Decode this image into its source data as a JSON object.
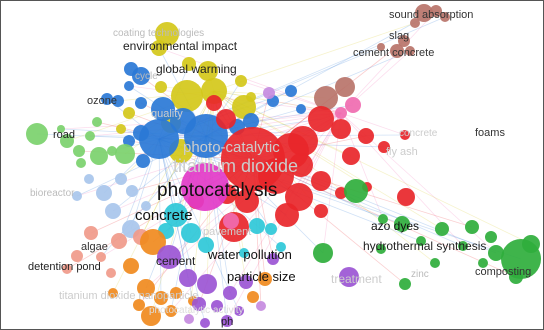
{
  "map": {
    "background": "#ffffff",
    "border_color": "#555555",
    "cluster_colors": {
      "red": "#e8262a",
      "blue": "#2a78d6",
      "yellow": "#d4c81a",
      "green": "#2fae3c",
      "light_green": "#7bd16c",
      "orange": "#f08a1e",
      "purple": "#9b55d4",
      "cyan": "#2ec8d8",
      "pink": "#f06bb0",
      "magenta": "#e23bc8",
      "light_blue": "#a8c6ec",
      "brown": "#b8746a",
      "salmon": "#f09a8a",
      "violet": "#c58be0"
    },
    "labels": [
      {
        "text": "sound absorption",
        "color": "#333333"
      },
      {
        "text": "slag",
        "color": "#333333"
      },
      {
        "text": "cement concrete",
        "color": "#333333"
      },
      {
        "text": "coating technologies",
        "color": "#bbbbbb"
      },
      {
        "text": "environmental impact",
        "color": "#222222"
      },
      {
        "text": "global warming",
        "color": "#222222"
      },
      {
        "text": "cycle",
        "color": "#bbbbbb"
      },
      {
        "text": "ozone",
        "color": "#333333"
      },
      {
        "text": "quality",
        "color": "#cccccc"
      },
      {
        "text": "road",
        "color": "#222222"
      },
      {
        "text": "concrete",
        "color": "#cccccc"
      },
      {
        "text": "fly ash",
        "color": "#cccccc"
      },
      {
        "text": "foams",
        "color": "#333333"
      },
      {
        "text": "photo-catalytic",
        "color": "#cccccc"
      },
      {
        "text": "titanium dioxide",
        "color": "#cccccc"
      },
      {
        "text": "bioreactor",
        "color": "#bbbbbb"
      },
      {
        "text": "photocatalysis",
        "color": "#111111"
      },
      {
        "text": "concrete",
        "color": "#111111"
      },
      {
        "text": "pavement",
        "color": "#cccccc"
      },
      {
        "text": "azo dyes",
        "color": "#111111"
      },
      {
        "text": "hydrothermal synthesis",
        "color": "#222222"
      },
      {
        "text": "algae",
        "color": "#333333"
      },
      {
        "text": "detention pond",
        "color": "#222222"
      },
      {
        "text": "cement",
        "color": "#222222"
      },
      {
        "text": "water pollution",
        "color": "#111111"
      },
      {
        "text": "composting",
        "color": "#333333"
      },
      {
        "text": "zinc",
        "color": "#bbbbbb"
      },
      {
        "text": "particle size",
        "color": "#111111"
      },
      {
        "text": "treatment",
        "color": "#cccccc"
      },
      {
        "text": "titanium dioxide nanoparticle",
        "color": "#cccccc"
      },
      {
        "text": "photocatalytic activity",
        "color": "#dddddd"
      },
      {
        "text": "ph",
        "color": "#222222"
      }
    ]
  }
}
